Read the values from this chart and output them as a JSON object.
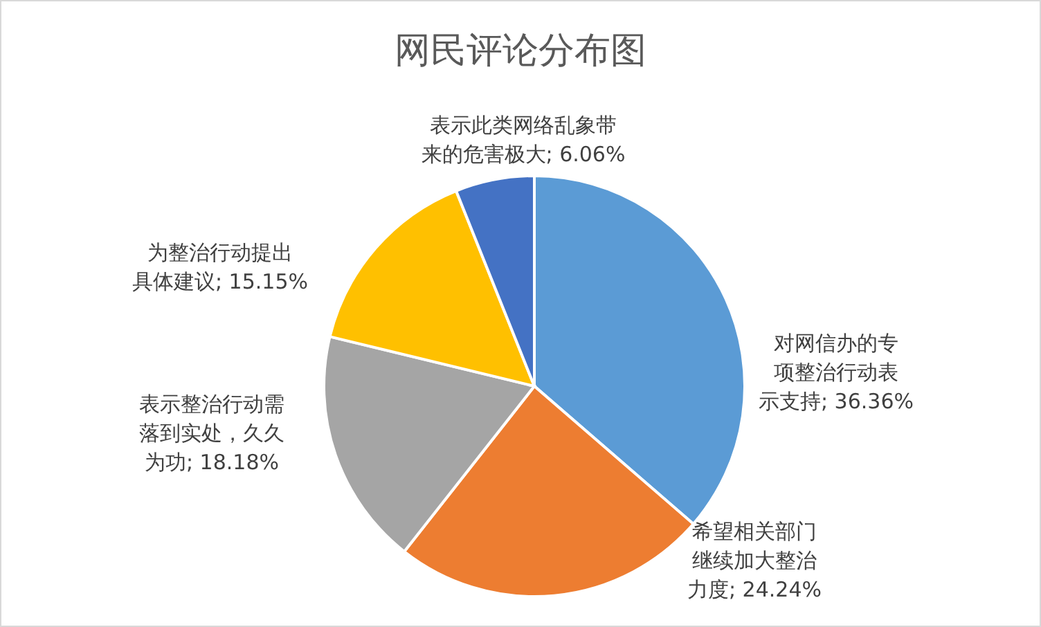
{
  "chart_data": {
    "type": "pie",
    "title": "网民评论分布图",
    "categories": [
      "对网信办的专项整治行动表示支持",
      "希望相关部门继续加大整治力度",
      "表示整治行动需落到实处，久久为功",
      "为整治行动提出具体建议",
      "表示此类网络乱象带来的危害极大"
    ],
    "values": [
      36.36,
      24.24,
      18.18,
      15.15,
      6.06
    ],
    "value_labels": [
      "36.36%",
      "24.24%",
      "18.18%",
      "15.15%",
      "6.06%"
    ],
    "colors": [
      "#5b9bd5",
      "#ed7d31",
      "#a5a5a5",
      "#ffc000",
      "#4472c4"
    ]
  }
}
